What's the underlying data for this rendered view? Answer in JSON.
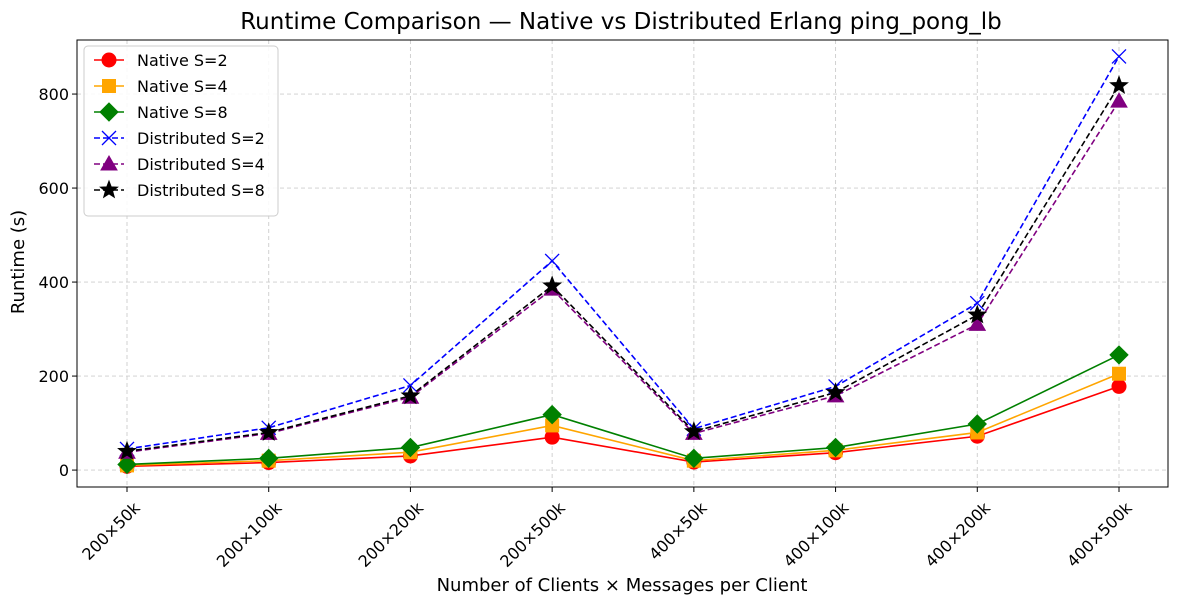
{
  "chart_data": {
    "type": "line",
    "title": "Runtime Comparison — Native vs Distributed Erlang ping_pong_lb",
    "xlabel": "Number of Clients × Messages per Client",
    "ylabel": "Runtime (s)",
    "categories": [
      "200×50k",
      "200×100k",
      "200×200k",
      "200×500k",
      "400×50k",
      "400×100k",
      "400×200k",
      "400×500k"
    ],
    "ylim": [
      -36,
      915
    ],
    "yticks": [
      0,
      200,
      400,
      600,
      800
    ],
    "grid": true,
    "legend_position": "top-left",
    "series": [
      {
        "name": "Native S=2",
        "values": [
          8,
          16,
          30,
          70,
          17,
          37,
          72,
          178
        ],
        "color": "#ff0000",
        "linestyle": "solid",
        "marker": "circle"
      },
      {
        "name": "Native S=4",
        "values": [
          10,
          20,
          38,
          95,
          20,
          42,
          80,
          205
        ],
        "color": "#ffa500",
        "linestyle": "solid",
        "marker": "square"
      },
      {
        "name": "Native S=8",
        "values": [
          12,
          25,
          48,
          118,
          25,
          48,
          98,
          245
        ],
        "color": "#008000",
        "linestyle": "solid",
        "marker": "diamond"
      },
      {
        "name": "Distributed S=2",
        "values": [
          45,
          90,
          180,
          445,
          88,
          178,
          355,
          880
        ],
        "color": "#0000ff",
        "linestyle": "dashed",
        "marker": "x"
      },
      {
        "name": "Distributed S=4",
        "values": [
          38,
          78,
          155,
          385,
          78,
          158,
          310,
          785
        ],
        "color": "#800080",
        "linestyle": "dashed",
        "marker": "triangle"
      },
      {
        "name": "Distributed S=8",
        "values": [
          40,
          80,
          158,
          392,
          82,
          165,
          330,
          818
        ],
        "color": "#000000",
        "linestyle": "dashed",
        "marker": "star"
      }
    ]
  }
}
